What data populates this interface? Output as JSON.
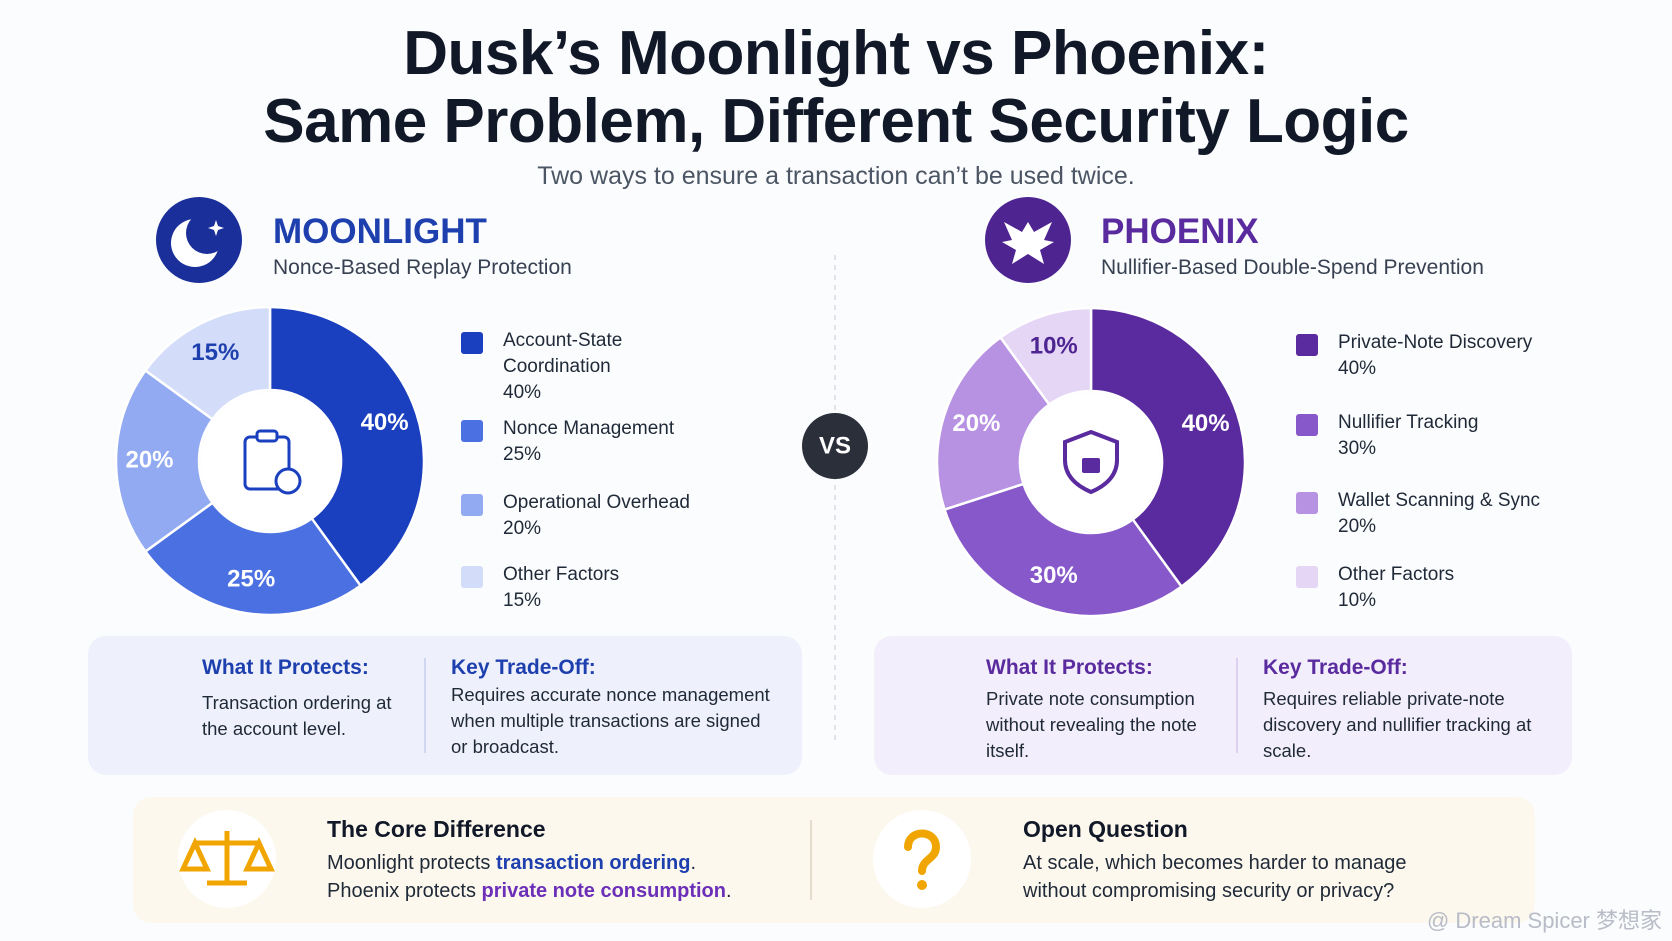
{
  "header": {
    "title_line1": "Dusk’s Moonlight vs Phoenix:",
    "title_line2": "Same Problem, Different Security Logic",
    "subtitle": "Two ways to ensure a transaction can’t be used twice."
  },
  "chart_data": [
    {
      "type": "pie",
      "donut": true,
      "title": "MOONLIGHT",
      "subtitle": "Nonce-Based Replay Protection",
      "categories": [
        "Account-State Coordination",
        "Nonce Management",
        "Operational Overhead",
        "Other Factors"
      ],
      "values": [
        40,
        25,
        20,
        15
      ],
      "value_labels": [
        "40%",
        "25%",
        "20%",
        "15%"
      ],
      "colors": [
        "#1a3fbf",
        "#4a70e2",
        "#92aaf1",
        "#d3ddf9"
      ]
    },
    {
      "type": "pie",
      "donut": true,
      "title": "PHOENIX",
      "subtitle": "Nullifier-Based Double-Spend Prevention",
      "categories": [
        "Private-Note Discovery",
        "Nullifier Tracking",
        "Wallet Scanning & Sync",
        "Other Factors"
      ],
      "values": [
        40,
        30,
        20,
        10
      ],
      "value_labels": [
        "40%",
        "30%",
        "20%",
        "10%"
      ],
      "colors": [
        "#5a2a9f",
        "#8758ca",
        "#b792e2",
        "#e5d6f6"
      ]
    }
  ],
  "vs": "VS",
  "panels": [
    {
      "protects_heading": "What It Protects:",
      "protects_text": "Transaction ordering at the account level.",
      "tradeoff_heading": "Key Trade-Off:",
      "tradeoff_text": "Requires accurate nonce management when multiple transactions are signed or broadcast."
    },
    {
      "protects_heading": "What It Protects:",
      "protects_text": "Private note consumption without revealing the note itself.",
      "tradeoff_heading": "Key Trade-Off:",
      "tradeoff_text": "Requires reliable private-note discovery and nullifier tracking at scale."
    }
  ],
  "footer": {
    "core_heading": "The Core Difference",
    "core_lines": [
      [
        {
          "text": "Moonlight protects "
        },
        {
          "text": "transaction ordering",
          "emphasis": true
        },
        {
          "text": "."
        }
      ],
      [
        {
          "text": "Phoenix protects "
        },
        {
          "text": "private note consumption",
          "emphasis": true
        },
        {
          "text": "."
        }
      ]
    ],
    "question_heading": "Open Question",
    "question_text": "At scale, which becomes harder to manage without compromising security or privacy?"
  },
  "watermark": "@ Dream Spicer 梦想家"
}
